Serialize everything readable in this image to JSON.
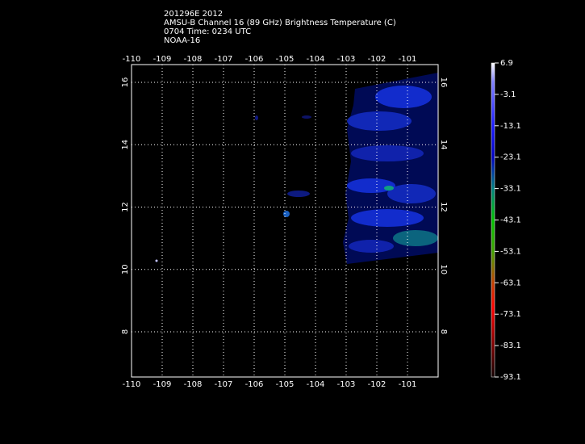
{
  "header": {
    "lines": [
      "201296E 2012",
      "AMSU-B Channel 16 (89 GHz) Brightness Temperature (C)",
      "0704 Time: 0234 UTC",
      "NOAA-16"
    ]
  },
  "map": {
    "xlim": [
      -110,
      -100
    ],
    "ylim": [
      6.55,
      16.57
    ],
    "lon_ticks": [
      -110,
      -109,
      -108,
      -107,
      -106,
      -105,
      -104,
      -103,
      -102,
      -101
    ],
    "lat_ticks": [
      8,
      10,
      12,
      14,
      16
    ]
  },
  "colorbar": {
    "lim": [
      -93.1,
      6.9
    ],
    "ticks": [
      6.9,
      -3.1,
      -13.1,
      -23.1,
      -33.1,
      -43.1,
      -53.1,
      -63.1,
      -73.1,
      -83.1,
      -93.1
    ]
  }
}
